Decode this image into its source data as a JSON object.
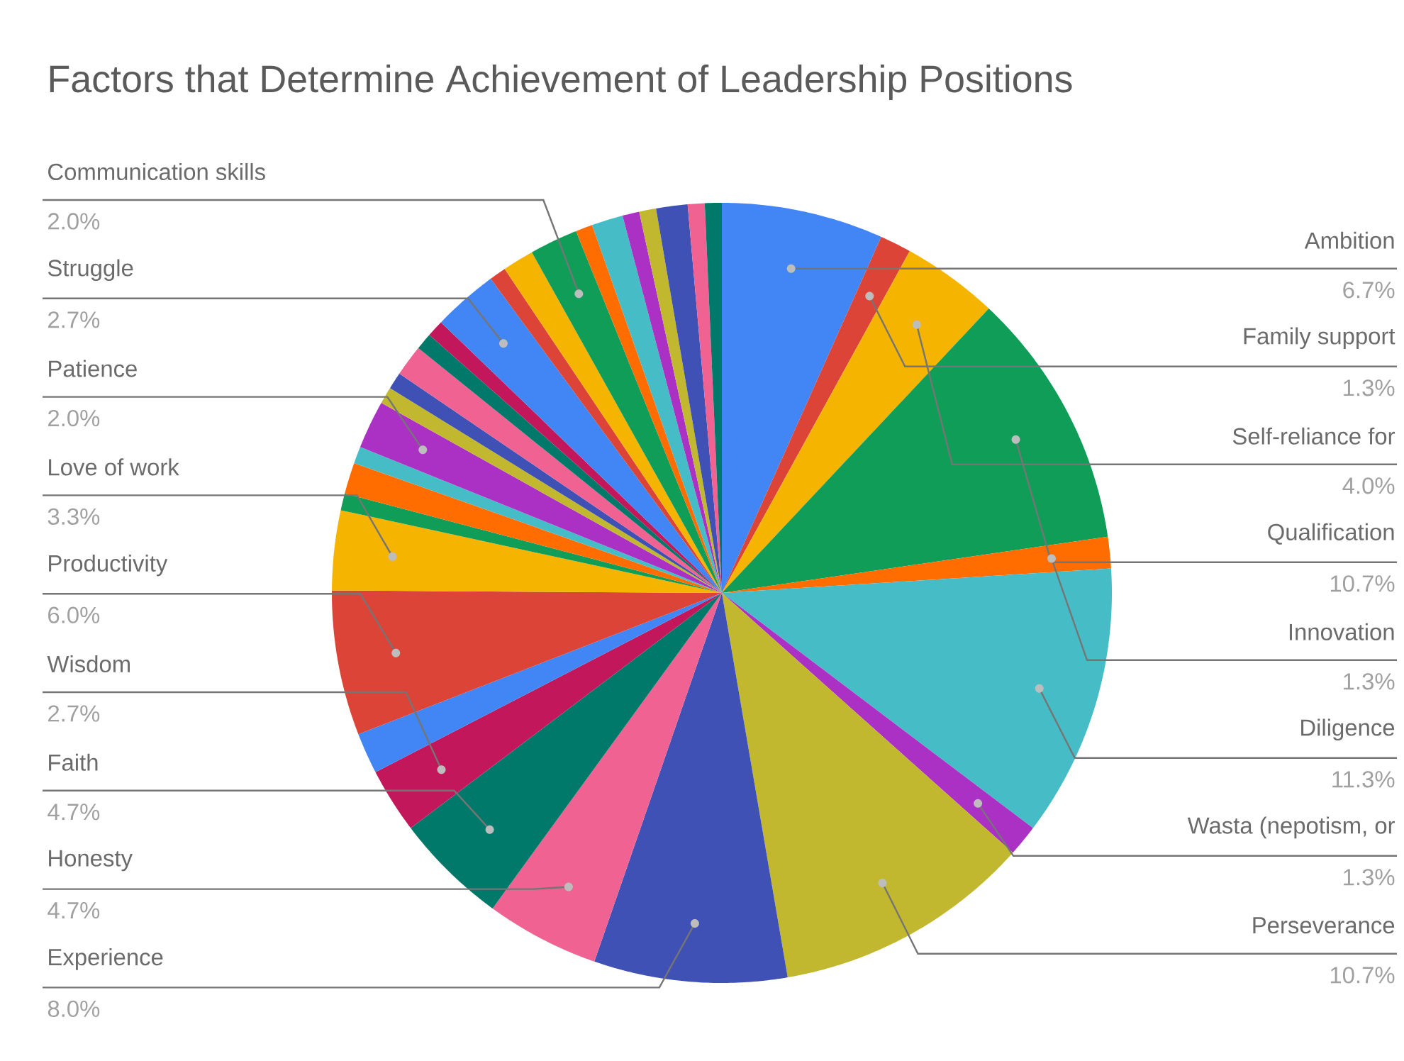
{
  "chart_data": {
    "type": "pie",
    "title": "Factors that Determine Achievement of Leadership Positions",
    "categories": [
      "Ambition",
      "Family support",
      "Self-reliance for",
      "Qualification",
      "Innovation",
      "Diligence",
      "Wasta (nepotism, or",
      "Perseverance",
      "Experience",
      "Honesty",
      "Faith",
      "Wisdom",
      null,
      "Productivity",
      "Love of work",
      null,
      null,
      null,
      "Patience",
      null,
      null,
      null,
      null,
      null,
      "Struggle",
      null,
      null,
      "Communication skills",
      null,
      null,
      null,
      null,
      null,
      null,
      null
    ],
    "values": [
      6.7,
      1.3,
      4.0,
      10.7,
      1.3,
      11.3,
      1.3,
      10.7,
      8.0,
      4.7,
      4.7,
      2.7,
      1.7,
      6.0,
      3.3,
      0.7,
      1.3,
      0.7,
      2.0,
      0.7,
      0.7,
      1.3,
      0.7,
      0.7,
      2.7,
      0.7,
      1.3,
      2.0,
      0.7,
      1.3,
      0.7,
      0.7,
      1.3,
      0.7,
      0.7
    ],
    "value_labels": [
      "6.7%",
      "1.3%",
      "4.0%",
      "10.7%",
      "1.3%",
      "11.3%",
      "1.3%",
      "10.7%",
      "8.0%",
      "4.7%",
      "4.7%",
      "2.7%",
      null,
      "6.0%",
      "3.3%",
      null,
      null,
      null,
      "2.0%",
      null,
      null,
      null,
      null,
      null,
      "2.7%",
      null,
      null,
      "2.0%",
      null,
      null,
      null,
      null,
      null,
      null,
      null
    ],
    "colors": [
      "#4285f4",
      "#db4437",
      "#f4b400",
      "#0f9d58",
      "#ff6d01",
      "#46bdc6",
      "#ab30c4",
      "#c2b82f",
      "#3f51b5",
      "#f06292",
      "#00796b",
      "#c2185b",
      "#4285f4",
      "#db4437",
      "#f4b400",
      "#0f9d58",
      "#ff6d01",
      "#46bdc6",
      "#ab30c4",
      "#c2b82f",
      "#3f51b5",
      "#f06292",
      "#00796b",
      "#c2185b",
      "#4285f4",
      "#db4437",
      "#f4b400",
      "#0f9d58",
      "#ff6d01",
      "#46bdc6",
      "#ab30c4",
      "#c2b82f",
      "#3f51b5",
      "#f06292",
      "#00796b"
    ]
  }
}
